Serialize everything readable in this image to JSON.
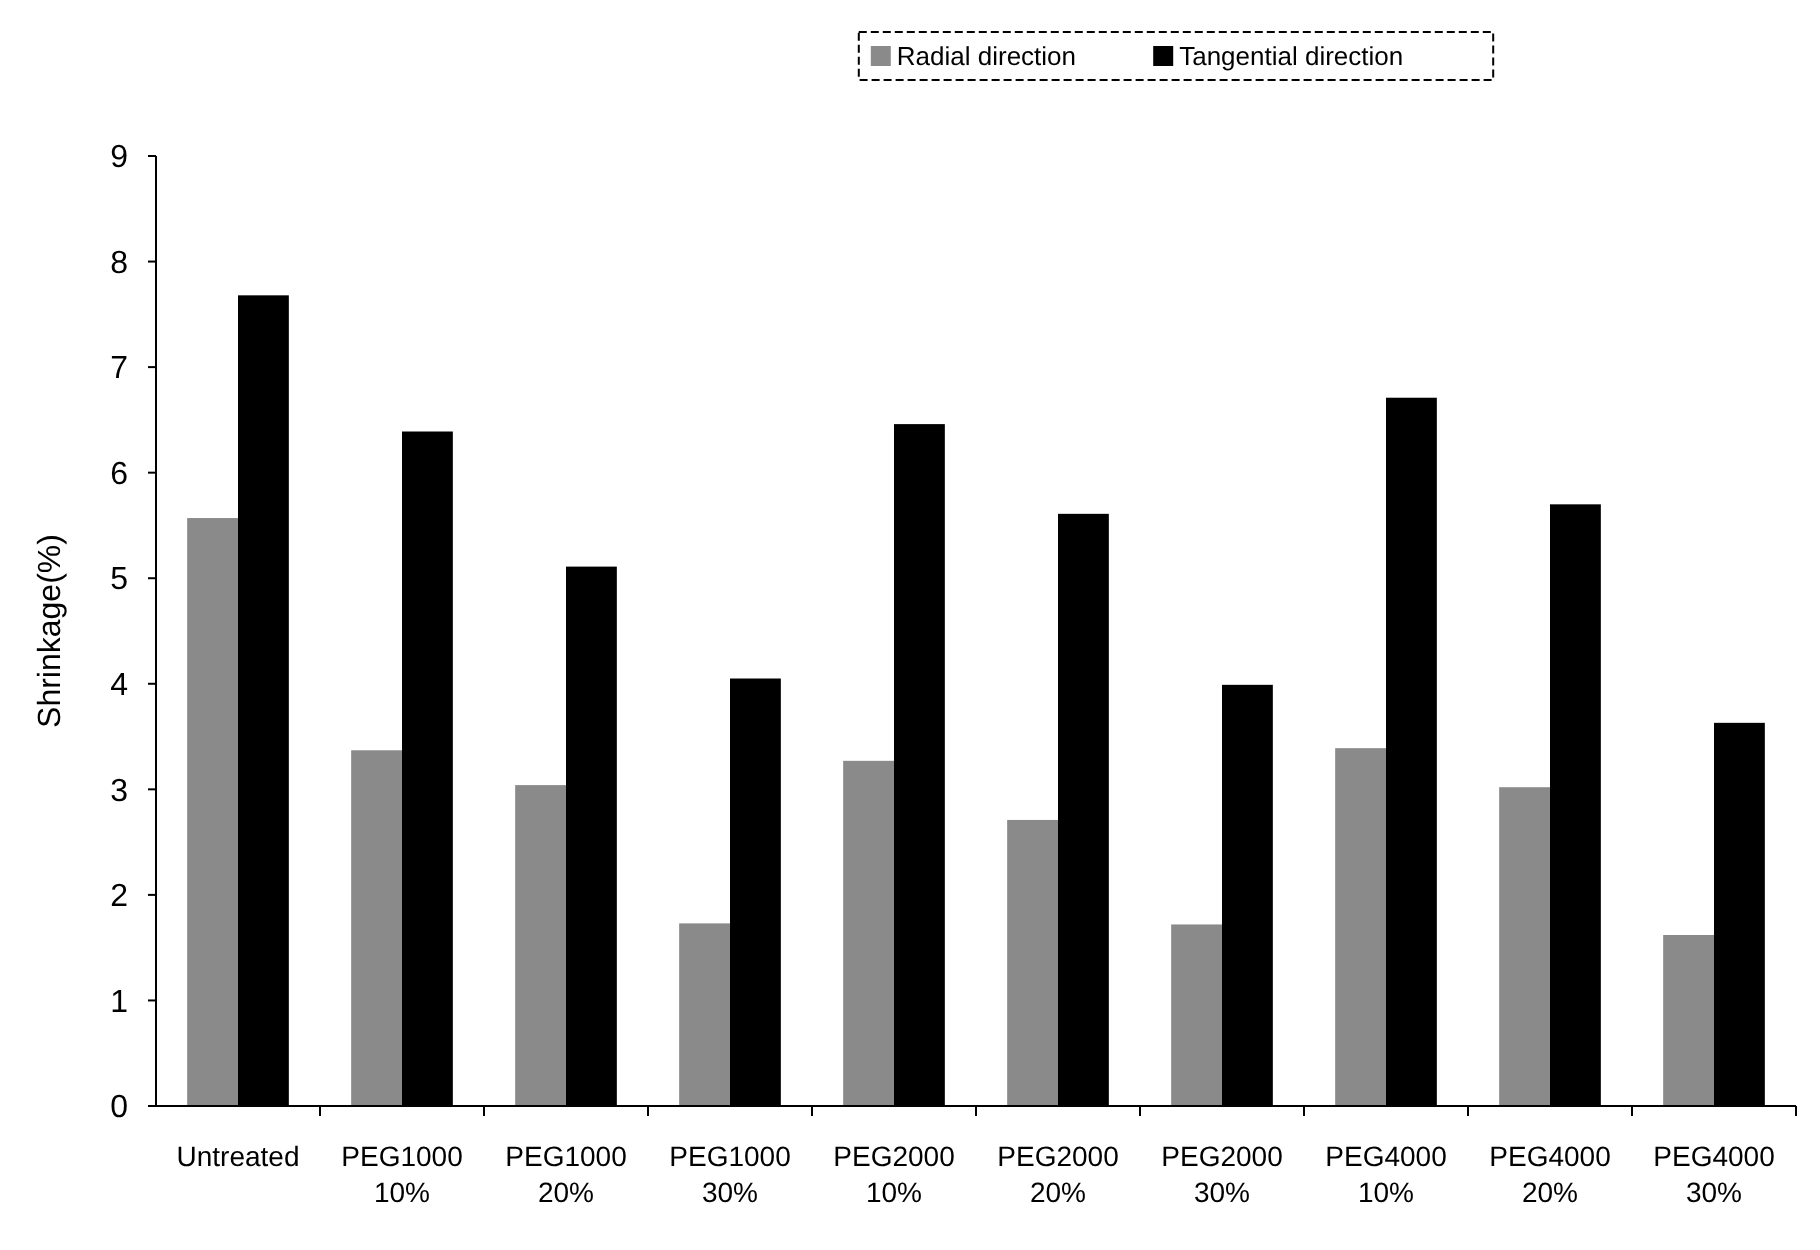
{
  "chart_data": {
    "type": "bar",
    "ylabel": "Shrinkage(%)",
    "categories": [
      "Untreated",
      "PEG1000 10%",
      "PEG1000 20%",
      "PEG1000 30%",
      "PEG2000 10%",
      "PEG2000 20%",
      "PEG2000 30%",
      "PEG4000 10%",
      "PEG4000 20%",
      "PEG4000 30%"
    ],
    "series": [
      {
        "name": "Radial direction",
        "color": "#8a8a8a",
        "values": [
          5.57,
          3.37,
          3.04,
          1.73,
          3.27,
          2.71,
          1.72,
          3.39,
          3.02,
          1.62
        ]
      },
      {
        "name": "Tangential direction",
        "color": "#000000",
        "values": [
          7.68,
          6.39,
          5.11,
          4.05,
          6.46,
          5.61,
          3.99,
          6.71,
          5.7,
          3.63
        ]
      }
    ],
    "ylim": [
      0,
      9
    ],
    "yticks": [
      0,
      1,
      2,
      3,
      4,
      5,
      6,
      7,
      8,
      9
    ],
    "grid": false,
    "legend": "top"
  }
}
